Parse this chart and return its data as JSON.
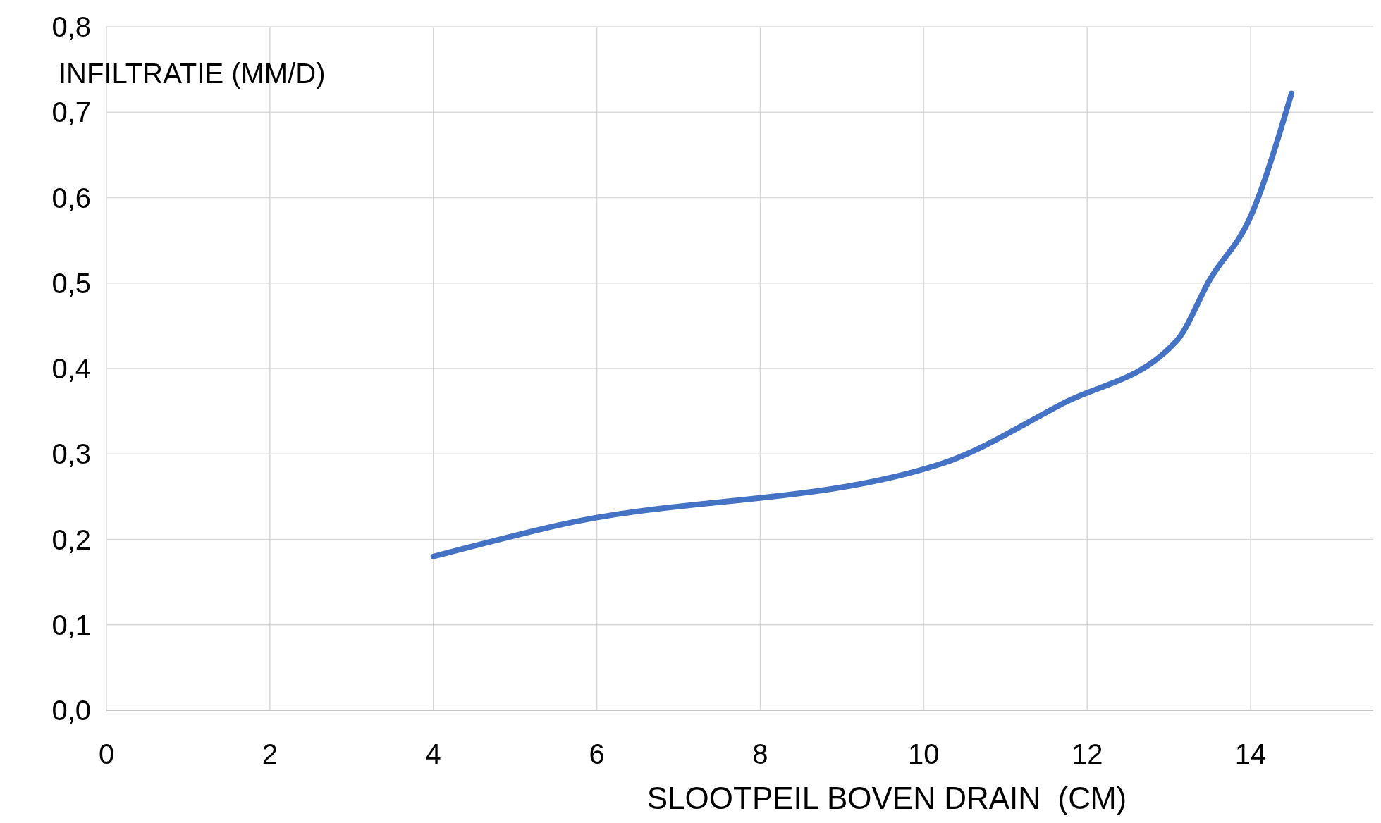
{
  "chart_data": {
    "type": "line",
    "xlabel": "SLOOTPEIL BOVEN DRAIN  (CM)",
    "ylabel": "INFILTRATIE (MM/D)",
    "x": [
      4,
      5.5,
      10.2,
      11.7,
      13.1,
      13.5,
      14,
      14.5
    ],
    "series": [
      {
        "color": "#4472c4",
        "values": [
          0.18,
          0.216,
          0.288,
          0.359,
          0.433,
          0.504,
          0.578,
          0.722
        ]
      }
    ],
    "xlim": [
      0,
      15.5
    ],
    "xticks": [
      0,
      2,
      4,
      6,
      8,
      10,
      12,
      14
    ],
    "ylim": [
      0,
      0.8
    ],
    "yticks": [
      {
        "value": 0,
        "label": "0,0"
      },
      {
        "value": 0.1,
        "label": "0,1"
      },
      {
        "value": 0.2,
        "label": "0,2"
      },
      {
        "value": 0.3,
        "label": "0,3"
      },
      {
        "value": 0.4,
        "label": "0,4"
      },
      {
        "value": 0.5,
        "label": "0,5"
      },
      {
        "value": 0.6,
        "label": "0,6"
      },
      {
        "value": 0.7,
        "label": "0,7"
      },
      {
        "value": 0.8,
        "label": "0,8"
      }
    ],
    "grid": true
  }
}
